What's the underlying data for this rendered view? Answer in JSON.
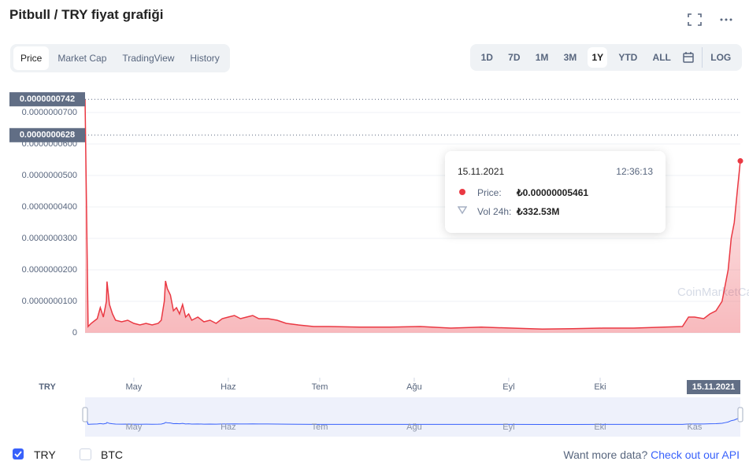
{
  "header": {
    "title": "Pitbull / TRY fiyat grafiği"
  },
  "tabs": [
    "Price",
    "Market Cap",
    "TradingView",
    "History"
  ],
  "ranges": [
    "1D",
    "7D",
    "1M",
    "3M",
    "1Y",
    "YTD",
    "ALL",
    "LOG"
  ],
  "tooltip": {
    "date": "15.11.2021",
    "time": "12:36:13",
    "price_label": "Price:",
    "price": "₺0.00000005461",
    "vol_label": "Vol 24h:",
    "vol": "₺332.53M"
  },
  "watermark": "CoinMarketCap",
  "footer": {
    "checkboxes": [
      "TRY",
      "BTC"
    ],
    "question": "Want more data?",
    "link": "Check out our API"
  },
  "chart_data": {
    "type": "line",
    "y_axis_label": "TRY",
    "xlim": [
      0,
      215
    ],
    "ylim": [
      -1.425e-08,
      7.8e-08
    ],
    "xticks": [
      {
        "value": 16,
        "label": "May"
      },
      {
        "value": 47,
        "label": "Haz"
      },
      {
        "value": 77,
        "label": "Tem"
      },
      {
        "value": 108,
        "label": "Ağu"
      },
      {
        "value": 139,
        "label": "Eyl"
      },
      {
        "value": 169,
        "label": "Eki"
      }
    ],
    "yticks": [
      0,
      {
        "value": 1e-08,
        "label": "0.0000000100"
      },
      {
        "value": 2e-08,
        "label": "0.0000000200"
      },
      {
        "value": 3e-08,
        "label": "0.0000000300"
      },
      {
        "value": 4e-08,
        "label": "0.0000000400"
      },
      {
        "value": 5e-08,
        "label": "0.0000000500"
      },
      {
        "value": 6e-08,
        "label": "0.0000000600"
      },
      {
        "value": 7e-08,
        "label": "0.0000000700"
      }
    ],
    "grid": true,
    "annotations": [
      {
        "value": 7.42e-08,
        "label": "0.0000000742"
      },
      {
        "value": 6.28e-08,
        "label": "0.0000000628"
      }
    ],
    "x_crosshair": {
      "value": 215,
      "label": "15.11.2021"
    },
    "navigator_ticks": [
      {
        "value": 16,
        "label": "May"
      },
      {
        "value": 47,
        "label": "Haz"
      },
      {
        "value": 77,
        "label": "Tem"
      },
      {
        "value": 108,
        "label": "Ağu"
      },
      {
        "value": 139,
        "label": "Eyl"
      },
      {
        "value": 169,
        "label": "Eki"
      },
      {
        "value": 200,
        "label": "Kas"
      }
    ],
    "series": [
      {
        "color": "#ea3943",
        "x": [
          0,
          1,
          2,
          4,
          5,
          6,
          7,
          7.2,
          8,
          9,
          10,
          12,
          14,
          16,
          18,
          20,
          22,
          24,
          25,
          26,
          26.4,
          27,
          28,
          29,
          30,
          31,
          32,
          33,
          34,
          35,
          37,
          39,
          41,
          43,
          45,
          47,
          49,
          51,
          53,
          55,
          57,
          60,
          63,
          66,
          70,
          75,
          80,
          90,
          100,
          110,
          120,
          130,
          140,
          150,
          160,
          170,
          180,
          190,
          196,
          198,
          200,
          203,
          205,
          207,
          209,
          210,
          211,
          212,
          213,
          214,
          215
        ],
        "values": [
          7.42e-08,
          2e-09,
          3e-09,
          4.5e-09,
          8e-09,
          5e-09,
          1e-08,
          1.63e-08,
          9e-09,
          6e-09,
          4e-09,
          3.5e-09,
          4e-09,
          3e-09,
          2.5e-09,
          3e-09,
          2.5e-09,
          3e-09,
          4e-09,
          1e-08,
          1.65e-08,
          1.4e-08,
          1.2e-08,
          7e-09,
          8e-09,
          6e-09,
          9e-09,
          5e-09,
          6e-09,
          4e-09,
          5e-09,
          3.5e-09,
          4e-09,
          3e-09,
          4.5e-09,
          5e-09,
          5.5e-09,
          4.5e-09,
          5e-09,
          5.5e-09,
          4.5e-09,
          4.5e-09,
          4e-09,
          3e-09,
          2.5e-09,
          2e-09,
          2e-09,
          1.8e-09,
          1.8e-09,
          2e-09,
          1.5e-09,
          1.8e-09,
          1.5e-09,
          1.2e-09,
          1.3e-09,
          1.5e-09,
          1.5e-09,
          1.8e-09,
          2e-09,
          5e-09,
          5e-09,
          4.5e-09,
          6e-09,
          7e-09,
          1e-08,
          1.5e-08,
          2e-08,
          3e-08,
          3.5e-08,
          4.5e-08,
          5.461e-08
        ]
      }
    ]
  }
}
